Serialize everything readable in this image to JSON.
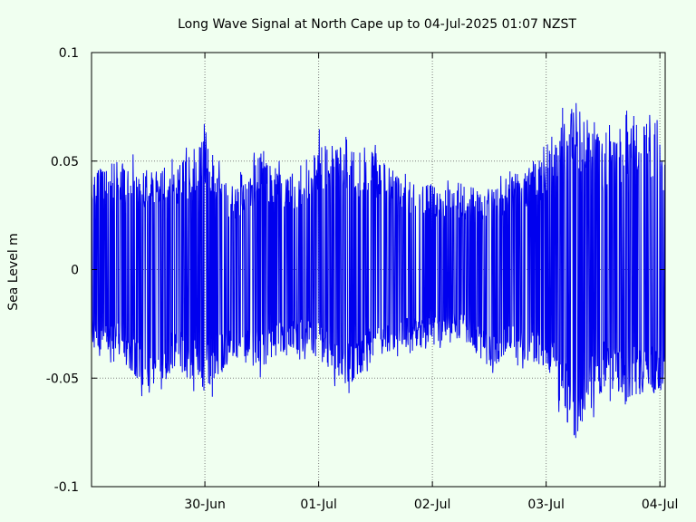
{
  "chart_data": {
    "type": "line",
    "title": "Long Wave Signal at North Cape up to 04-Jul-2025 01:07 NZST",
    "xlabel": "",
    "ylabel": "Sea Level m",
    "xlim": [
      "2025-06-29T00:05",
      "2025-07-04T01:07"
    ],
    "ylim": [
      -0.1,
      0.1
    ],
    "x_ticks": [
      {
        "label": "30-Jun",
        "value": "2025-06-30T00:00"
      },
      {
        "label": "01-Jul",
        "value": "2025-07-01T00:00"
      },
      {
        "label": "02-Jul",
        "value": "2025-07-02T00:00"
      },
      {
        "label": "03-Jul",
        "value": "2025-07-03T00:00"
      },
      {
        "label": "04-Jul",
        "value": "2025-07-04T00:00"
      }
    ],
    "y_ticks": [
      {
        "label": "0.1",
        "value": 0.1
      },
      {
        "label": "0.05",
        "value": 0.05
      },
      {
        "label": "0",
        "value": 0
      },
      {
        "label": "-0.05",
        "value": -0.05
      },
      {
        "label": "-0.1",
        "value": -0.1
      }
    ],
    "grid": true,
    "series_color": "#0000ee",
    "envelope": [
      {
        "x": "2025-06-29T00:05",
        "max": 0.05,
        "min": -0.04
      },
      {
        "x": "2025-06-29T06:00",
        "max": 0.056,
        "min": -0.045
      },
      {
        "x": "2025-06-29T12:00",
        "max": 0.05,
        "min": -0.065
      },
      {
        "x": "2025-06-29T18:00",
        "max": 0.052,
        "min": -0.05
      },
      {
        "x": "2025-06-30T00:00",
        "max": 0.068,
        "min": -0.064
      },
      {
        "x": "2025-06-30T06:00",
        "max": 0.04,
        "min": -0.045
      },
      {
        "x": "2025-06-30T12:00",
        "max": 0.06,
        "min": -0.05
      },
      {
        "x": "2025-06-30T18:00",
        "max": 0.045,
        "min": -0.04
      },
      {
        "x": "2025-07-01T00:00",
        "max": 0.066,
        "min": -0.045
      },
      {
        "x": "2025-07-01T06:00",
        "max": 0.062,
        "min": -0.062
      },
      {
        "x": "2025-07-01T12:00",
        "max": 0.06,
        "min": -0.045
      },
      {
        "x": "2025-07-01T18:00",
        "max": 0.045,
        "min": -0.04
      },
      {
        "x": "2025-07-02T00:00",
        "max": 0.045,
        "min": -0.04
      },
      {
        "x": "2025-07-02T06:00",
        "max": 0.042,
        "min": -0.035
      },
      {
        "x": "2025-07-02T12:00",
        "max": 0.04,
        "min": -0.05
      },
      {
        "x": "2025-07-02T18:00",
        "max": 0.05,
        "min": -0.045
      },
      {
        "x": "2025-07-03T00:00",
        "max": 0.058,
        "min": -0.05
      },
      {
        "x": "2025-07-03T06:00",
        "max": 0.087,
        "min": -0.088
      },
      {
        "x": "2025-07-03T12:00",
        "max": 0.065,
        "min": -0.06
      },
      {
        "x": "2025-07-03T18:00",
        "max": 0.075,
        "min": -0.065
      },
      {
        "x": "2025-07-04T00:00",
        "max": 0.078,
        "min": -0.063
      },
      {
        "x": "2025-07-04T01:07",
        "max": 0.06,
        "min": -0.055
      }
    ]
  }
}
